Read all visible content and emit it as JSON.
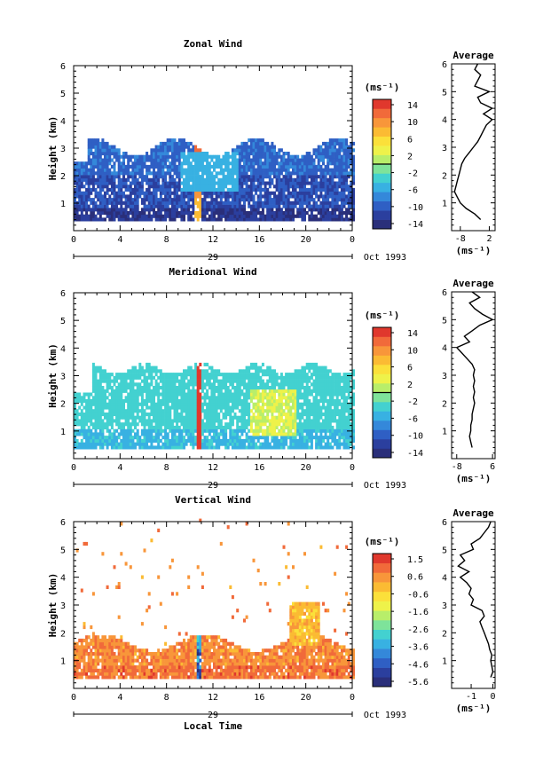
{
  "chart_data": [
    {
      "type": "heatmap",
      "title": "Zonal Wind",
      "ylabel": "Height (km)",
      "xlim": [
        0,
        24
      ],
      "ylim": [
        0,
        6
      ],
      "xticks": [
        "0",
        "4",
        "8",
        "12",
        "16",
        "20",
        "0"
      ],
      "yticks": [
        "1",
        "2",
        "3",
        "4",
        "5",
        "6"
      ],
      "day_label": "29",
      "date_label": "Oct 1993",
      "colorbar": {
        "unit": "(ms⁻¹)",
        "labels": [
          "14",
          "10",
          "6",
          "2",
          "-2",
          "-6",
          "-10",
          "-14"
        ],
        "range": [
          -14,
          14
        ],
        "marker": 0
      },
      "profile": {
        "title": "Average",
        "xlabel": "(ms⁻¹)",
        "xticks": [
          "-8",
          "2"
        ],
        "xlim": [
          -11,
          4
        ],
        "h": [
          0.4,
          0.6,
          0.8,
          1.0,
          1.2,
          1.4,
          1.6,
          1.8,
          2.0,
          2.2,
          2.4,
          2.6,
          2.8,
          3.0,
          3.2,
          3.4,
          3.6,
          3.8,
          4.0,
          4.2,
          4.4,
          4.6,
          4.8,
          5.0,
          5.2,
          5.4,
          5.6,
          5.8,
          6.0
        ],
        "v": [
          -1,
          -3,
          -6,
          -8,
          -9,
          -10,
          -9.5,
          -9,
          -8.5,
          -8,
          -7.5,
          -6.5,
          -5,
          -3.5,
          -2,
          -1,
          0,
          1,
          3,
          0,
          3,
          -1,
          -2,
          2,
          -3,
          -2,
          -1,
          -3,
          -2
        ]
      }
    },
    {
      "type": "heatmap",
      "title": "Meridional Wind",
      "ylabel": "Height (km)",
      "xlim": [
        0,
        24
      ],
      "ylim": [
        0,
        6
      ],
      "xticks": [
        "0",
        "4",
        "8",
        "12",
        "16",
        "20",
        "0"
      ],
      "yticks": [
        "1",
        "2",
        "3",
        "4",
        "5",
        "6"
      ],
      "day_label": "29",
      "date_label": "Oct 1993",
      "colorbar": {
        "unit": "(ms⁻¹)",
        "labels": [
          "14",
          "10",
          "6",
          "2",
          "-2",
          "-6",
          "-10",
          "-14"
        ],
        "range": [
          -14,
          14
        ],
        "marker": 0
      },
      "profile": {
        "title": "Average",
        "xlabel": "(ms⁻¹)",
        "xticks": [
          "-8",
          "6"
        ],
        "xlim": [
          -10,
          7
        ],
        "h": [
          0.4,
          0.6,
          0.8,
          1.0,
          1.2,
          1.4,
          1.6,
          1.8,
          2.0,
          2.2,
          2.4,
          2.6,
          2.8,
          3.0,
          3.2,
          3.4,
          3.6,
          3.8,
          4.0,
          4.2,
          4.4,
          4.6,
          4.8,
          5.0,
          5.2,
          5.4,
          5.6,
          5.8,
          6.0
        ],
        "v": [
          -2,
          -2.5,
          -3,
          -2.5,
          -2.5,
          -2,
          -2,
          -1.5,
          -1,
          -1.5,
          -1,
          -1.5,
          -1,
          -1.5,
          -1,
          -2,
          -4,
          -6,
          -8,
          -3,
          -5,
          -2,
          1,
          6,
          2,
          -1,
          -3,
          1,
          -2
        ]
      }
    },
    {
      "type": "heatmap",
      "title": "Vertical Wind",
      "xlabel": "Local Time",
      "ylabel": "Height (km)",
      "xlim": [
        0,
        24
      ],
      "ylim": [
        0,
        6
      ],
      "xticks": [
        "0",
        "4",
        "8",
        "12",
        "16",
        "20",
        "0"
      ],
      "yticks": [
        "1",
        "2",
        "3",
        "4",
        "5",
        "6"
      ],
      "day_label": "29",
      "date_label": "Oct 1993",
      "colorbar": {
        "unit": "(ms⁻¹)",
        "labels": [
          "1.5",
          "0.6",
          "-0.6",
          "-1.6",
          "-2.6",
          "-3.6",
          "-4.6",
          "-5.6"
        ],
        "range": [
          -6,
          2
        ],
        "marker": null
      },
      "profile": {
        "title": "Average",
        "xlabel": "(ms⁻¹)",
        "xticks": [
          "-1",
          "0"
        ],
        "xlim": [
          -1.9,
          0.1
        ],
        "h": [
          0.4,
          0.6,
          0.8,
          1.0,
          1.2,
          1.4,
          1.6,
          1.8,
          2.0,
          2.2,
          2.4,
          2.6,
          2.8,
          3.0,
          3.2,
          3.4,
          3.6,
          3.8,
          4.0,
          4.2,
          4.4,
          4.6,
          4.8,
          5.0,
          5.2,
          5.4,
          5.6,
          5.8,
          6.0
        ],
        "v": [
          -0.1,
          0,
          -0.05,
          -0.1,
          -0.05,
          -0.15,
          -0.2,
          -0.3,
          -0.4,
          -0.5,
          -0.6,
          -0.4,
          -0.5,
          -1.0,
          -0.9,
          -1.1,
          -1.0,
          -1.2,
          -1.5,
          -1.1,
          -1.6,
          -1.3,
          -1.5,
          -0.9,
          -1.0,
          -0.6,
          -0.4,
          -0.2,
          -0.1
        ]
      }
    }
  ]
}
